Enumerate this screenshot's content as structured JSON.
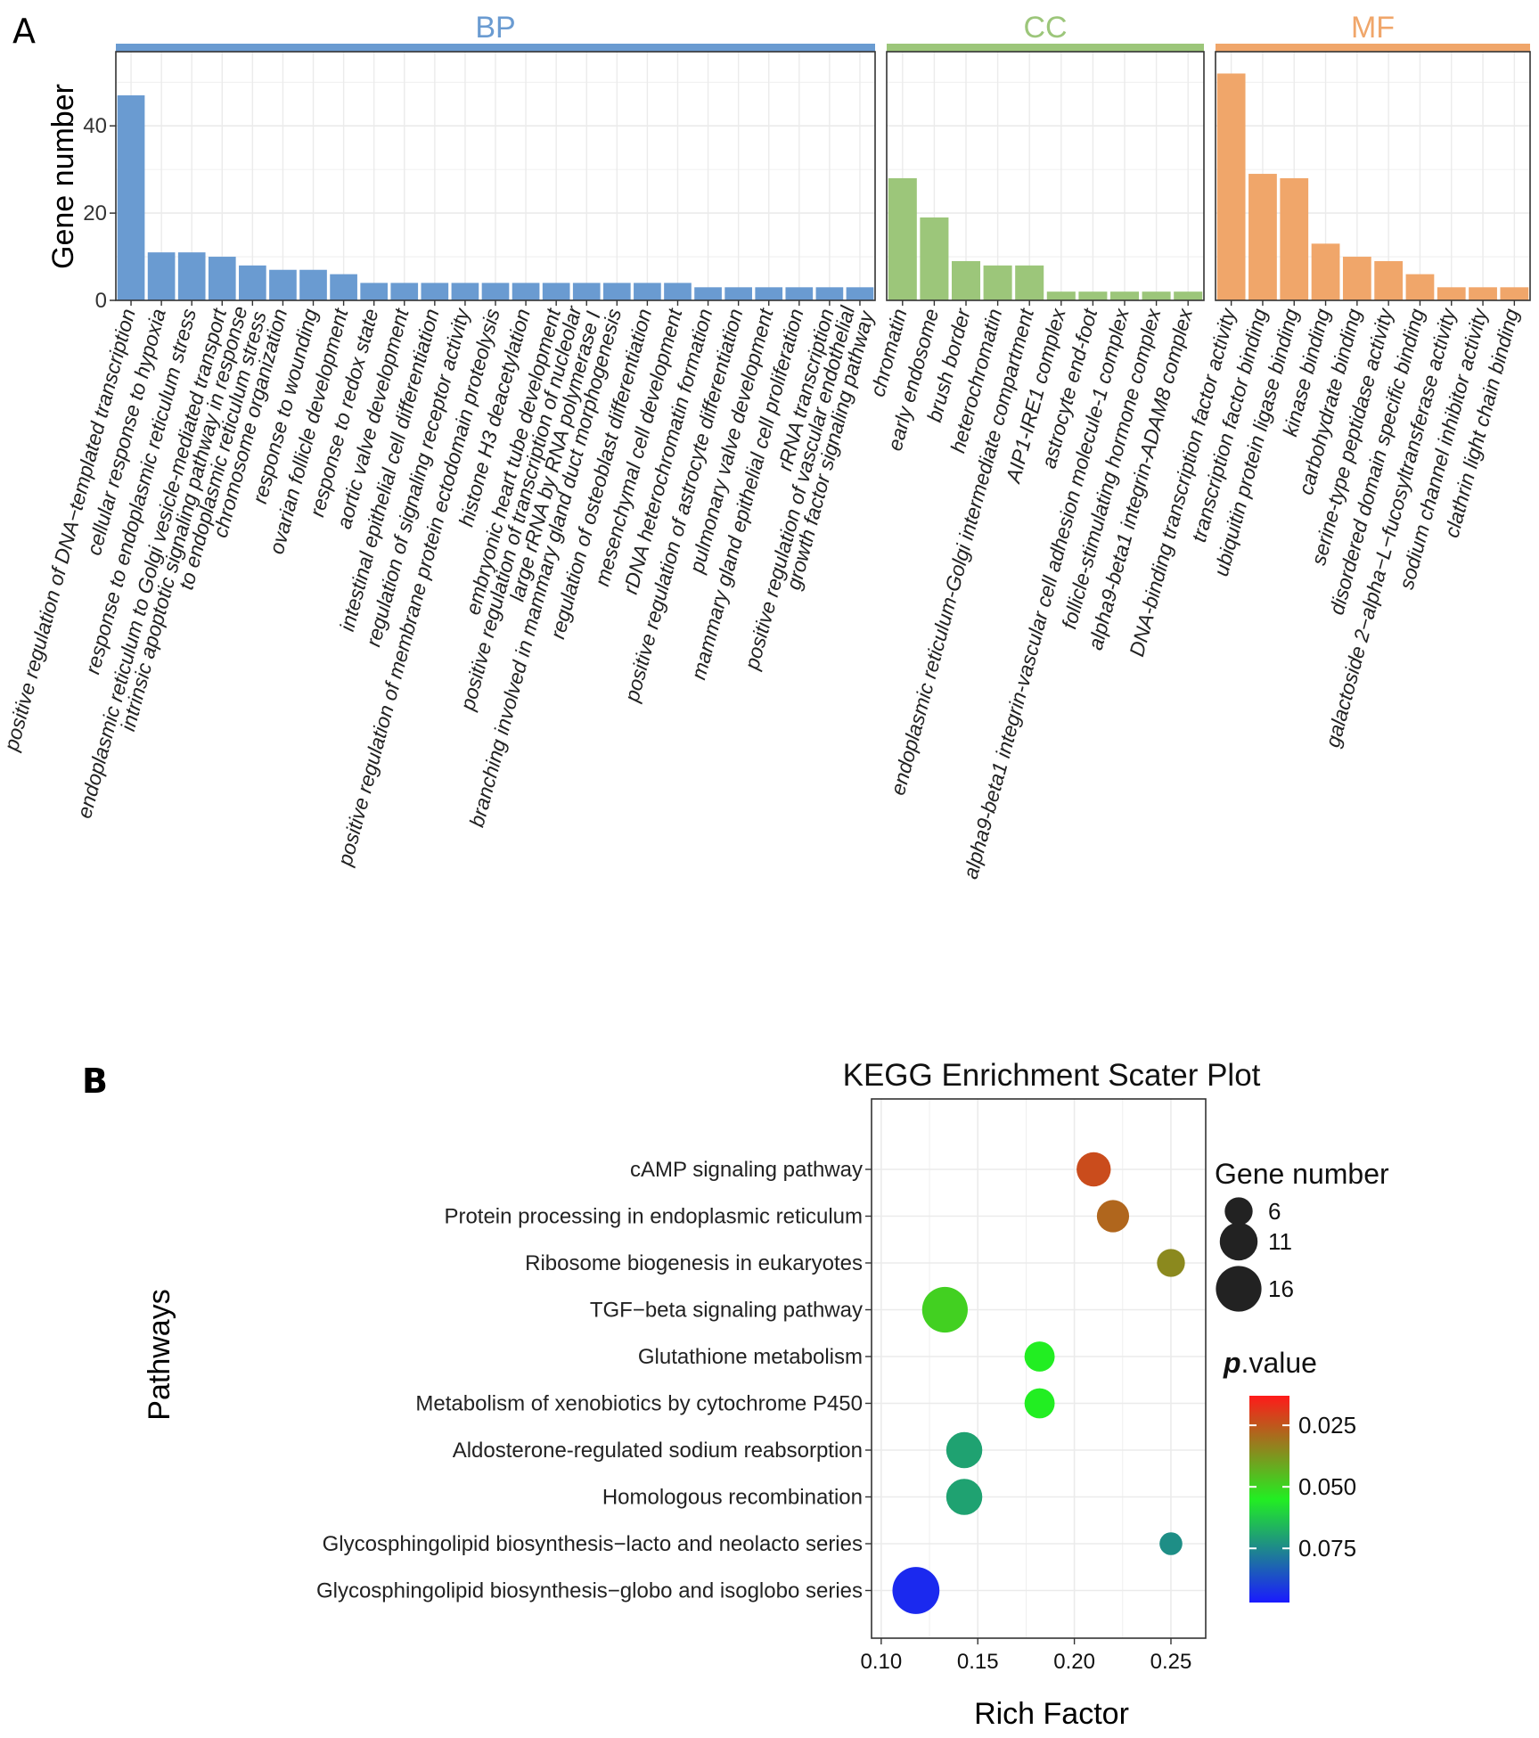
{
  "panel_a": {
    "letter": "A"
  },
  "panel_b": {
    "letter": "B"
  },
  "colors": {
    "BP": "#6a9bd1",
    "CC": "#9cc67a",
    "MF": "#f0a66a",
    "grid": "#ebebeb",
    "panel_border": "#333333"
  },
  "chart_data": [
    {
      "type": "bar",
      "title": "",
      "ylabel": "Gene number",
      "ylim": [
        0,
        57
      ],
      "yticks": [
        0,
        20,
        40
      ],
      "facets": [
        {
          "name": "BP",
          "categories": [
            [
              "positive regulation of DNA−templated transcription"
            ],
            [
              "cellular response to hypoxia"
            ],
            [
              "response to endoplasmic reticulum stress"
            ],
            [
              "endoplasmic reticulum to Golgi vesicle-mediated transport"
            ],
            [
              "intrinsic apoptotic signaling pathway in response",
              "to endoplasmic reticulum stress"
            ],
            [
              "chromosome organization"
            ],
            [
              "response to wounding"
            ],
            [
              "ovarian follicle development"
            ],
            [
              "response to redox state"
            ],
            [
              "aortic valve development"
            ],
            [
              "intestinal epithelial cell differentiation"
            ],
            [
              "regulation of signaling receptor activity"
            ],
            [
              "positive regulation of membrane protein ectodomain proteolysis"
            ],
            [
              "histone H3 deacetylation"
            ],
            [
              "embryonic heart tube development"
            ],
            [
              "positive regulation of transcription of nucleolar",
              "large rRNA by RNA polymerase I"
            ],
            [
              "branching involved in mammary gland duct morphogenesis"
            ],
            [
              "regulation of osteoblast differentiation"
            ],
            [
              "mesenchymal cell development"
            ],
            [
              "rDNA heterochromatin formation"
            ],
            [
              "positive regulation of astrocyte differentiation"
            ],
            [
              "pulmonary valve development"
            ],
            [
              "mammary gland epithelial cell proliferation"
            ],
            [
              "rRNA transcription"
            ],
            [
              "positive regulation of vascular endothelial",
              "growth factor signaling pathway"
            ]
          ],
          "values": [
            47,
            11,
            11,
            10,
            8,
            7,
            7,
            6,
            4,
            4,
            4,
            4,
            4,
            4,
            4,
            4,
            4,
            4,
            4,
            3,
            3,
            3,
            3,
            3,
            3
          ]
        },
        {
          "name": "CC",
          "categories": [
            [
              "chromatin"
            ],
            [
              "early endosome"
            ],
            [
              "brush border"
            ],
            [
              "heterochromatin"
            ],
            [
              "endoplasmic reticulum-Golgi intermediate compartment"
            ],
            [
              "AIP1-IRE1 complex"
            ],
            [
              "astrocyte end-foot"
            ],
            [
              "alpha9-beta1 integrin-vascular cell adhesion molecule-1 complex"
            ],
            [
              "follicle-stimulating hormone complex"
            ],
            [
              "alpha9-beta1 integrin-ADAM8 complex"
            ]
          ],
          "values": [
            28,
            19,
            9,
            8,
            8,
            2,
            2,
            2,
            2,
            2
          ]
        },
        {
          "name": "MF",
          "categories": [
            [
              "DNA-binding transcription factor activity"
            ],
            [
              "transcription factor binding"
            ],
            [
              "ubiquitin protein ligase binding"
            ],
            [
              "kinase binding"
            ],
            [
              "carbohydrate binding"
            ],
            [
              "serine-type peptidase activity"
            ],
            [
              "disordered domain specific binding"
            ],
            [
              "galactoside 2−alpha−L−fucosyltransferase activity"
            ],
            [
              "sodium channel inhibitor activity"
            ],
            [
              "clathrin light chain binding"
            ]
          ],
          "values": [
            52,
            29,
            28,
            13,
            10,
            9,
            6,
            3,
            3,
            3
          ]
        }
      ]
    },
    {
      "type": "scatter",
      "title": "KEGG Enrichment Scater Plot",
      "xlabel": "Rich Factor",
      "ylabel": "Pathways",
      "xlim": [
        0.095,
        0.268
      ],
      "xticks": [
        0.1,
        0.15,
        0.2,
        0.25
      ],
      "xtick_labels": [
        "0.10",
        "0.15",
        "0.20",
        "0.25"
      ],
      "categories": [
        "cAMP signaling pathway",
        "Protein processing in endoplasmic reticulum",
        "Ribosome biogenesis in eukaryotes",
        "TGF−beta signaling pathway",
        "Glutathione metabolism",
        "Metabolism of xenobiotics by cytochrome P450",
        "Aldosterone-regulated sodium reabsorption",
        "Homologous recombination",
        "Glycosphingolipid biosynthesis−lacto and neolacto series",
        "Glycosphingolipid biosynthesis−globo and isoglobo series"
      ],
      "rich_factor": [
        0.21,
        0.22,
        0.25,
        0.133,
        0.182,
        0.182,
        0.143,
        0.143,
        0.25,
        0.118
      ],
      "gene_number": [
        9,
        8,
        6,
        16,
        7,
        7,
        10,
        10,
        4,
        17
      ],
      "p_value": [
        0.023,
        0.028,
        0.035,
        0.049,
        0.055,
        0.055,
        0.07,
        0.07,
        0.074,
        0.094
      ],
      "size_legend": {
        "title": "Gene number",
        "values": [
          6,
          11,
          16
        ],
        "labels": [
          "6",
          "11",
          "16"
        ]
      },
      "color_legend": {
        "title_italic": "p",
        "title_rest": ".value",
        "range": [
          0.013,
          0.097
        ],
        "ticks": [
          0.025,
          0.05,
          0.075
        ],
        "tick_labels": [
          "0.025",
          "0.050",
          "0.075"
        ],
        "stops": [
          "#ff1a1a",
          "#22ee22",
          "#1a1aff"
        ]
      }
    }
  ]
}
